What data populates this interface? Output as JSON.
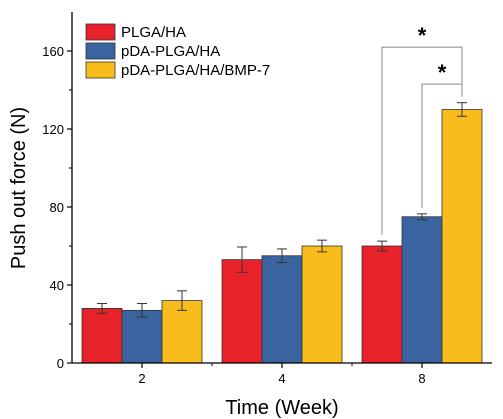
{
  "chart_data": {
    "type": "bar",
    "xlabel": "Time (Week)",
    "ylabel": "Push out force (N)",
    "categories": [
      "2",
      "4",
      "8"
    ],
    "ylim": [
      0,
      180
    ],
    "yticks": [
      0,
      40,
      80,
      120,
      160
    ],
    "grid": false,
    "legend_position": "top-left",
    "series": [
      {
        "name": "PLGA/HA",
        "color": "#e8222b",
        "values": [
          28,
          53,
          60
        ],
        "errors": [
          2.5,
          6.5,
          2.5
        ]
      },
      {
        "name": "pDA-PLGA/HA",
        "color": "#3a64a0",
        "values": [
          27,
          55,
          75
        ],
        "errors": [
          3.5,
          3.5,
          1.5
        ]
      },
      {
        "name": "pDA-PLGA/HA/BMP-7",
        "color": "#f8bd1c",
        "values": [
          32,
          60,
          130
        ],
        "errors": [
          5,
          3,
          3.5
        ]
      }
    ],
    "annotations": [
      {
        "text": "*",
        "category": "8",
        "from_series": 0,
        "to_series": 2,
        "level": 162
      },
      {
        "text": "*",
        "category": "8",
        "from_series": 1,
        "to_series": 2,
        "level": 143
      }
    ]
  }
}
